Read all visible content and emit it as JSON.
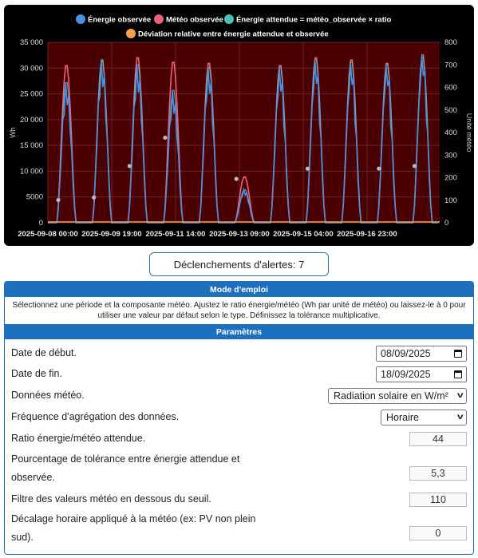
{
  "chart_data": {
    "type": "line",
    "legend": [
      {
        "name": "Énergie observée",
        "color": "#4a90e2"
      },
      {
        "name": "Météo observée",
        "color": "#ef5f7e"
      },
      {
        "name": "Énergie attendue = météo_observée × ratio",
        "color": "#4dc0b5"
      },
      {
        "name": "Déviation relative entre énergie attendue et observée",
        "color": "#f6a04d"
      }
    ],
    "ylabel_left": "Wh",
    "ylabel_right": "Unité météo",
    "ylim_left": [
      0,
      35000
    ],
    "ylim_right": [
      0,
      800
    ],
    "y_ticks_left": [
      "0",
      "5000",
      "10 000",
      "15 000",
      "20 000",
      "25 000",
      "30 000",
      "35 000"
    ],
    "y_ticks_right": [
      "0",
      "100",
      "200",
      "300",
      "400",
      "500",
      "600",
      "700",
      "800"
    ],
    "x_ticks": [
      "2025-09-08 00:00",
      "2025-09-09 19:00",
      "2025-09-11 14:00",
      "2025-09-13 09:00",
      "2025-09-15 04:00",
      "2025-09-16 23:00"
    ],
    "days": [
      "2025-09-08",
      "2025-09-09",
      "2025-09-10",
      "2025-09-11",
      "2025-09-12",
      "2025-09-13",
      "2025-09-14",
      "2025-09-15",
      "2025-09-16",
      "2025-09-17",
      "2025-09-18"
    ],
    "daily_peak_energy_wh": [
      27500,
      32000,
      31000,
      26000,
      30500,
      6500,
      30500,
      32000,
      31500,
      31000,
      33000
    ],
    "daily_peak_meteo": [
      705,
      728,
      740,
      720,
      715,
      205,
      705,
      740,
      730,
      715,
      745
    ],
    "deviation_markers_wh": [
      4400,
      4900,
      11000,
      16500,
      0,
      8500,
      0,
      10500,
      0,
      10500,
      11000
    ],
    "background_color": "#4a0000"
  },
  "alerts": {
    "label": "Déclenchements d'alertes: 7"
  },
  "mode": {
    "title": "Mode d'emploi",
    "description": "Sélectionnez une période et la composante météo. Ajustez le ratio énergie/météo (Wh par unité de météo) ou laissez-le à 0 pour utiliser une valeur par défaut selon le type. Définissez la tolérance multiplicative."
  },
  "params": {
    "title": "Paramètres",
    "start_label": "Date de début.",
    "start_value": "08/09/2025",
    "end_label": "Date de fin.",
    "end_value": "18/09/2025",
    "meteo_label": "Données météo.",
    "meteo_value": "Radiation solaire en W/m²",
    "freq_label": "Fréquence d'agrégation des données.",
    "freq_value": "Horaire",
    "ratio_label": "Ratio énergie/météo attendue.",
    "ratio_value": "44",
    "tol_label_1": "Pourcentage de tolérance entre énergie attendue et",
    "tol_label_2": "observée.",
    "tol_value": "5,3",
    "filter_label": "Filtre des valeurs météo en dessous du seuil.",
    "filter_value": "110",
    "shift_label_1": "Décalage horaire appliqué à la météo (ex: PV non plein",
    "shift_label_2": "sud).",
    "shift_value": "0"
  }
}
